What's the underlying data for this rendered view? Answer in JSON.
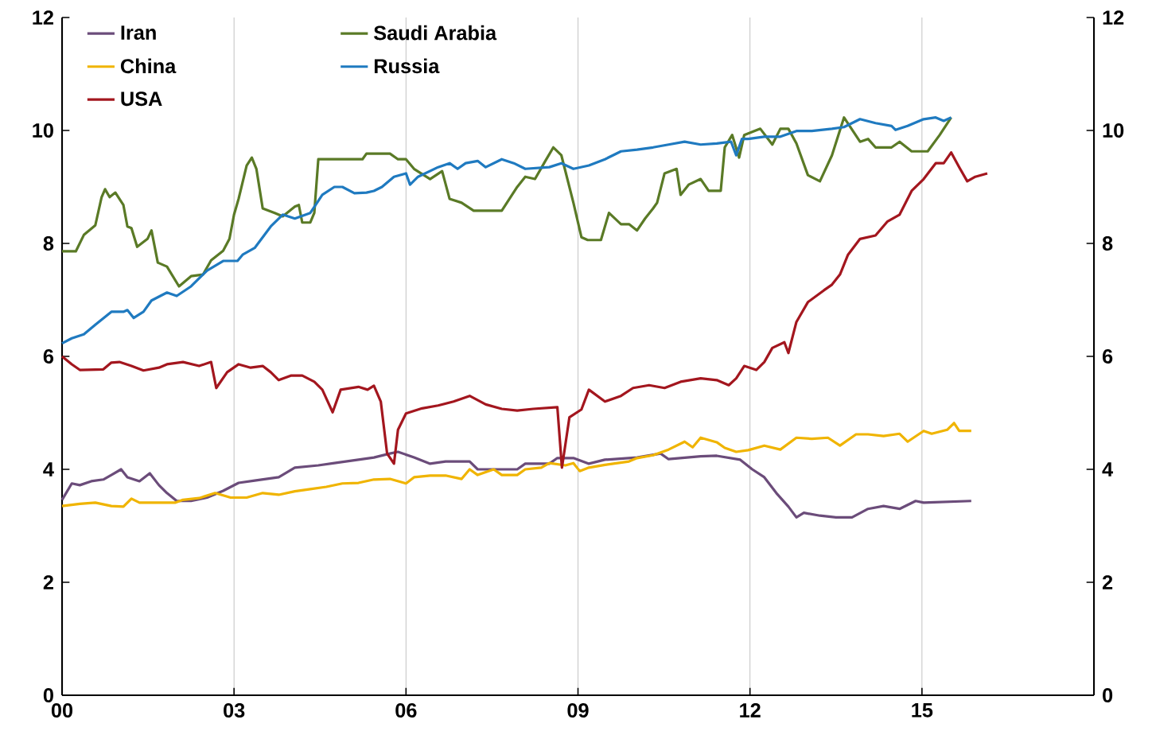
{
  "chart_data": {
    "type": "line",
    "xlim": [
      0,
      18
    ],
    "xticks": [
      {
        "value": 0,
        "label": "00"
      },
      {
        "value": 3,
        "label": "03"
      },
      {
        "value": 6,
        "label": "06"
      },
      {
        "value": 9,
        "label": "09"
      },
      {
        "value": 12,
        "label": "12"
      },
      {
        "value": 15,
        "label": "15"
      }
    ],
    "ylim": [
      0,
      12
    ],
    "yticks": [
      0,
      2,
      4,
      6,
      8,
      10,
      12
    ],
    "y2lim": [
      0,
      12
    ],
    "y2ticks": [
      0,
      2,
      4,
      6,
      8,
      10,
      12
    ],
    "grid": "x",
    "legend": "top left",
    "marker": "none",
    "line_style": "solid",
    "series": [
      {
        "name": "Iran",
        "color": "#6b4c7a",
        "x": [
          0,
          0.17,
          0.31,
          0.51,
          0.72,
          0.86,
          1.03,
          1.14,
          1.35,
          1.53,
          1.69,
          1.83,
          2.0,
          2.25,
          2.53,
          2.81,
          3.08,
          3.36,
          3.78,
          4.06,
          4.47,
          4.75,
          5.17,
          5.44,
          5.72,
          5.86,
          6.14,
          6.42,
          6.69,
          7.11,
          7.25,
          7.94,
          8.08,
          8.5,
          8.64,
          8.92,
          9.19,
          9.47,
          10.03,
          10.44,
          10.58,
          11.14,
          11.42,
          11.83,
          12.04,
          12.25,
          12.46,
          12.67,
          12.81,
          12.94,
          13.22,
          13.5,
          13.78,
          14.06,
          14.33,
          14.61,
          14.89,
          15.03,
          15.86
        ],
        "values": [
          3.46,
          3.75,
          3.72,
          3.79,
          3.82,
          3.9,
          4.0,
          3.86,
          3.79,
          3.93,
          3.72,
          3.58,
          3.44,
          3.44,
          3.5,
          3.62,
          3.76,
          3.8,
          3.86,
          4.03,
          4.07,
          4.11,
          4.17,
          4.21,
          4.28,
          4.31,
          4.21,
          4.1,
          4.14,
          4.14,
          4.0,
          4.0,
          4.1,
          4.1,
          4.2,
          4.2,
          4.1,
          4.17,
          4.21,
          4.28,
          4.18,
          4.23,
          4.24,
          4.17,
          4.0,
          3.86,
          3.58,
          3.34,
          3.15,
          3.23,
          3.18,
          3.15,
          3.15,
          3.3,
          3.35,
          3.3,
          3.44,
          3.41,
          3.44
        ]
      },
      {
        "name": "Saudi Arabia",
        "color": "#5a7a26",
        "x": [
          0,
          0.24,
          0.38,
          0.58,
          0.69,
          0.75,
          0.83,
          0.93,
          1.07,
          1.14,
          1.21,
          1.31,
          1.49,
          1.56,
          1.67,
          1.83,
          2.04,
          2.25,
          2.46,
          2.6,
          2.81,
          2.92,
          3.0,
          3.08,
          3.22,
          3.31,
          3.39,
          3.5,
          3.71,
          3.85,
          4.06,
          4.13,
          4.19,
          4.33,
          4.4,
          4.47,
          5.24,
          5.31,
          5.72,
          5.86,
          6.0,
          6.14,
          6.42,
          6.63,
          6.76,
          6.97,
          7.18,
          7.67,
          7.94,
          8.08,
          8.25,
          8.43,
          8.57,
          8.71,
          8.92,
          9.06,
          9.17,
          9.4,
          9.54,
          9.75,
          9.89,
          10.03,
          10.17,
          10.31,
          10.38,
          10.51,
          10.72,
          10.79,
          10.93,
          11.14,
          11.28,
          11.49,
          11.56,
          11.69,
          11.81,
          11.9,
          12.18,
          12.39,
          12.53,
          12.67,
          12.81,
          13.01,
          13.22,
          13.43,
          13.64,
          13.92,
          14.06,
          14.19,
          14.47,
          14.61,
          14.82,
          15.1,
          15.31,
          15.51
        ],
        "values": [
          7.86,
          7.86,
          8.15,
          8.32,
          8.82,
          8.96,
          8.82,
          8.9,
          8.68,
          8.3,
          8.27,
          7.94,
          8.08,
          8.23,
          7.66,
          7.59,
          7.24,
          7.42,
          7.45,
          7.7,
          7.87,
          8.08,
          8.51,
          8.79,
          9.38,
          9.52,
          9.32,
          8.62,
          8.54,
          8.48,
          8.65,
          8.68,
          8.37,
          8.37,
          8.54,
          9.49,
          9.49,
          9.59,
          9.59,
          9.49,
          9.49,
          9.32,
          9.14,
          9.28,
          8.79,
          8.72,
          8.58,
          8.58,
          9.0,
          9.18,
          9.14,
          9.46,
          9.7,
          9.56,
          8.72,
          8.11,
          8.06,
          8.06,
          8.54,
          8.34,
          8.34,
          8.23,
          8.44,
          8.62,
          8.72,
          9.24,
          9.32,
          8.86,
          9.04,
          9.14,
          8.93,
          8.93,
          9.7,
          9.92,
          9.52,
          9.92,
          10.03,
          9.75,
          10.03,
          10.03,
          9.77,
          9.21,
          9.1,
          9.56,
          10.23,
          9.8,
          9.85,
          9.7,
          9.7,
          9.8,
          9.63,
          9.63,
          9.92,
          10.23
        ]
      },
      {
        "name": "China",
        "color": "#f0b400",
        "x": [
          0,
          0.31,
          0.58,
          0.86,
          1.07,
          1.21,
          1.35,
          1.69,
          1.97,
          2.11,
          2.39,
          2.67,
          2.94,
          3.22,
          3.5,
          3.78,
          4.06,
          4.33,
          4.61,
          4.89,
          5.17,
          5.44,
          5.72,
          6.0,
          6.14,
          6.42,
          6.69,
          6.97,
          7.11,
          7.25,
          7.53,
          7.67,
          7.94,
          8.08,
          8.36,
          8.5,
          8.78,
          8.92,
          9.03,
          9.19,
          9.47,
          9.89,
          10.03,
          10.31,
          10.58,
          10.86,
          11.0,
          11.14,
          11.42,
          11.56,
          11.76,
          11.97,
          12.25,
          12.53,
          12.81,
          13.08,
          13.36,
          13.57,
          13.85,
          14.06,
          14.33,
          14.61,
          14.75,
          15.03,
          15.17,
          15.44,
          15.56,
          15.65,
          15.86
        ],
        "values": [
          3.35,
          3.39,
          3.41,
          3.35,
          3.34,
          3.48,
          3.41,
          3.41,
          3.41,
          3.46,
          3.49,
          3.58,
          3.5,
          3.5,
          3.58,
          3.55,
          3.61,
          3.65,
          3.69,
          3.75,
          3.76,
          3.82,
          3.83,
          3.75,
          3.86,
          3.89,
          3.89,
          3.83,
          4.0,
          3.9,
          4.0,
          3.9,
          3.9,
          4.0,
          4.03,
          4.11,
          4.07,
          4.11,
          3.97,
          4.03,
          4.08,
          4.14,
          4.2,
          4.25,
          4.35,
          4.49,
          4.39,
          4.56,
          4.48,
          4.38,
          4.31,
          4.34,
          4.42,
          4.35,
          4.56,
          4.54,
          4.56,
          4.42,
          4.62,
          4.62,
          4.59,
          4.63,
          4.49,
          4.68,
          4.63,
          4.7,
          4.82,
          4.68,
          4.68
        ]
      },
      {
        "name": "Russia",
        "color": "#1f7ac0",
        "x": [
          0,
          0.17,
          0.38,
          0.58,
          0.86,
          1.07,
          1.14,
          1.25,
          1.42,
          1.56,
          1.83,
          2.0,
          2.25,
          2.53,
          2.81,
          3.06,
          3.15,
          3.36,
          3.64,
          3.85,
          4.06,
          4.33,
          4.54,
          4.75,
          4.89,
          5.1,
          5.31,
          5.44,
          5.58,
          5.79,
          6.0,
          6.07,
          6.21,
          6.56,
          6.76,
          6.9,
          7.04,
          7.25,
          7.39,
          7.67,
          7.88,
          8.08,
          8.5,
          8.71,
          8.92,
          9.19,
          9.47,
          9.75,
          10.03,
          10.31,
          10.58,
          10.86,
          11.14,
          11.42,
          11.67,
          11.76,
          11.86,
          11.97,
          12.25,
          12.53,
          12.81,
          13.08,
          13.43,
          13.64,
          13.92,
          14.19,
          14.47,
          14.54,
          14.75,
          15.03,
          15.24,
          15.38,
          15.51
        ],
        "values": [
          6.23,
          6.32,
          6.39,
          6.56,
          6.79,
          6.79,
          6.82,
          6.68,
          6.79,
          6.99,
          7.13,
          7.07,
          7.24,
          7.52,
          7.69,
          7.69,
          7.8,
          7.92,
          8.3,
          8.51,
          8.44,
          8.54,
          8.86,
          9.0,
          9.0,
          8.89,
          8.9,
          8.93,
          9.0,
          9.18,
          9.24,
          9.04,
          9.18,
          9.35,
          9.42,
          9.32,
          9.42,
          9.46,
          9.35,
          9.49,
          9.42,
          9.32,
          9.35,
          9.42,
          9.32,
          9.38,
          9.49,
          9.63,
          9.66,
          9.7,
          9.75,
          9.8,
          9.75,
          9.77,
          9.8,
          9.56,
          9.85,
          9.85,
          9.89,
          9.89,
          9.99,
          9.99,
          10.03,
          10.06,
          10.2,
          10.13,
          10.08,
          10.01,
          10.08,
          10.2,
          10.23,
          10.17,
          10.23
        ]
      },
      {
        "name": "USA",
        "color": "#a3161e",
        "x": [
          0,
          0.17,
          0.31,
          0.72,
          0.86,
          1.0,
          1.21,
          1.42,
          1.69,
          1.83,
          2.11,
          2.39,
          2.6,
          2.69,
          2.88,
          3.08,
          3.29,
          3.5,
          3.64,
          3.78,
          3.99,
          4.19,
          4.4,
          4.54,
          4.72,
          4.86,
          5.17,
          5.33,
          5.44,
          5.56,
          5.67,
          5.79,
          5.86,
          6.0,
          6.28,
          6.56,
          6.83,
          7.11,
          7.39,
          7.67,
          7.94,
          8.22,
          8.64,
          8.72,
          8.85,
          9.06,
          9.19,
          9.47,
          9.75,
          9.96,
          10.24,
          10.51,
          10.79,
          11.14,
          11.42,
          11.63,
          11.76,
          11.9,
          12.11,
          12.25,
          12.39,
          12.6,
          12.67,
          12.81,
          13.01,
          13.29,
          13.43,
          13.57,
          13.71,
          13.92,
          14.19,
          14.4,
          14.61,
          14.82,
          15.03,
          15.24,
          15.38,
          15.51,
          15.65,
          15.79,
          15.93,
          16.14
        ],
        "values": [
          6.0,
          5.86,
          5.76,
          5.77,
          5.89,
          5.9,
          5.83,
          5.75,
          5.8,
          5.86,
          5.9,
          5.83,
          5.9,
          5.44,
          5.72,
          5.86,
          5.8,
          5.83,
          5.72,
          5.58,
          5.66,
          5.66,
          5.55,
          5.41,
          5.01,
          5.41,
          5.46,
          5.41,
          5.48,
          5.2,
          4.28,
          4.1,
          4.7,
          4.99,
          5.08,
          5.13,
          5.2,
          5.3,
          5.15,
          5.07,
          5.04,
          5.07,
          5.1,
          4.03,
          4.92,
          5.06,
          5.41,
          5.2,
          5.3,
          5.44,
          5.49,
          5.44,
          5.55,
          5.61,
          5.58,
          5.49,
          5.61,
          5.83,
          5.76,
          5.9,
          6.15,
          6.25,
          6.06,
          6.61,
          6.96,
          7.17,
          7.27,
          7.45,
          7.8,
          8.08,
          8.14,
          8.39,
          8.51,
          8.93,
          9.14,
          9.42,
          9.42,
          9.61,
          9.35,
          9.1,
          9.18,
          9.24
        ]
      }
    ]
  }
}
